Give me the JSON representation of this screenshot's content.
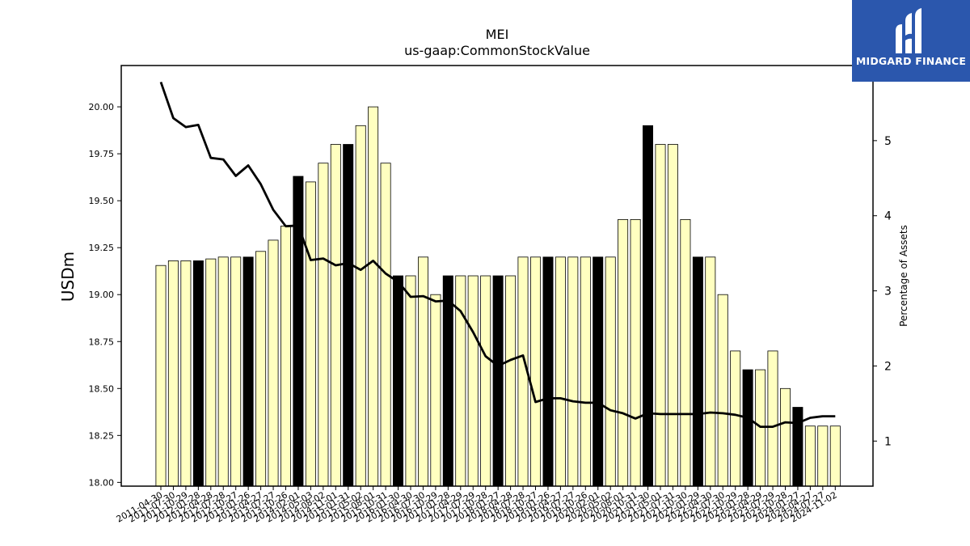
{
  "logo": {
    "text": "MIDGARD FINANCE",
    "icon": "midgard-logo-icon",
    "background": "#2b57ad"
  },
  "chart_data": {
    "type": "bar",
    "title": "MEI",
    "subtitle": "us-gaap:CommonStockValue",
    "ylabel": "USDm",
    "y2label": "Percentage of Assets",
    "ylim": [
      17.98,
      20.22
    ],
    "y2lim": [
      0.4,
      6.0
    ],
    "yticks": [
      "18.00",
      "18.25",
      "18.50",
      "18.75",
      "19.00",
      "19.25",
      "19.50",
      "19.75",
      "20.00"
    ],
    "y2ticks": [
      "1",
      "2",
      "3",
      "4",
      "5"
    ],
    "colors": {
      "bar": "#ffffc0",
      "bar_highlight": "#000000",
      "line": "#000000"
    },
    "categories": [
      "2011-04-30",
      "2011-07-30",
      "2011-10-29",
      "2012-01-28",
      "2012-04-28",
      "2012-07-28",
      "2012-10-27",
      "2013-01-26",
      "2013-04-27",
      "2013-07-27",
      "2013-10-26",
      "2014-02-01",
      "2014-05-03",
      "2014-08-02",
      "2014-11-01",
      "2015-01-31",
      "2015-05-02",
      "2015-08-01",
      "2015-10-31",
      "2016-01-30",
      "2016-04-30",
      "2016-07-30",
      "2016-10-29",
      "2017-01-28",
      "2017-04-29",
      "2017-07-29",
      "2017-10-28",
      "2018-01-27",
      "2018-04-28",
      "2018-07-28",
      "2018-10-27",
      "2019-01-26",
      "2019-04-27",
      "2019-07-27",
      "2019-10-26",
      "2020-02-01",
      "2020-05-02",
      "2020-08-01",
      "2020-10-31",
      "2021-01-30",
      "2021-05-01",
      "2021-07-31",
      "2021-10-30",
      "2022-01-29",
      "2022-04-30",
      "2022-07-30",
      "2022-10-29",
      "2023-01-28",
      "2023-04-29",
      "2023-07-29",
      "2023-10-28",
      "2024-01-27",
      "2024-04-27",
      "2024-07-27",
      "2024-11-02"
    ],
    "values": [
      19.155,
      19.18,
      19.18,
      19.18,
      19.19,
      19.2,
      19.2,
      19.2,
      19.23,
      19.29,
      19.365,
      19.63,
      19.6,
      19.7,
      19.8,
      19.8,
      19.9,
      20.0,
      19.7,
      19.1,
      19.1,
      19.2,
      19.0,
      19.1,
      19.1,
      19.1,
      19.1,
      19.1,
      19.1,
      19.2,
      19.2,
      19.2,
      19.2,
      19.2,
      19.2,
      19.2,
      19.2,
      19.4,
      19.4,
      19.9,
      19.8,
      19.8,
      19.4,
      19.2,
      19.2,
      19.0,
      18.7,
      18.6,
      18.6,
      18.7,
      18.5,
      18.4,
      18.3,
      18.3,
      18.3
    ],
    "highlighted": [
      3,
      7,
      11,
      15,
      19,
      23,
      27,
      31,
      35,
      39,
      43,
      47,
      51
    ],
    "line_series": {
      "name": "Percentage of Assets",
      "values": [
        5.78,
        5.3,
        5.18,
        5.21,
        4.77,
        4.75,
        4.53,
        4.67,
        4.42,
        4.08,
        3.86,
        3.87,
        3.41,
        3.43,
        3.34,
        3.37,
        3.28,
        3.4,
        3.23,
        3.12,
        2.92,
        2.93,
        2.86,
        2.87,
        2.73,
        2.45,
        2.13,
        2.0,
        2.08,
        2.14,
        1.52,
        1.57,
        1.57,
        1.53,
        1.51,
        1.51,
        1.41,
        1.37,
        1.3,
        1.37,
        1.36,
        1.36,
        1.36,
        1.36,
        1.38,
        1.37,
        1.35,
        1.31,
        1.19,
        1.19,
        1.25,
        1.24,
        1.31,
        1.33,
        1.33
      ]
    }
  }
}
